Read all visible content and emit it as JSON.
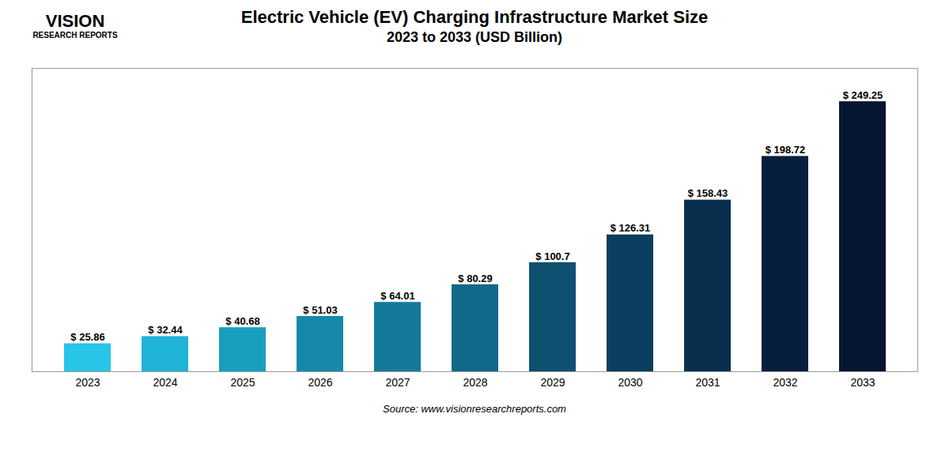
{
  "chart_data": {
    "type": "bar",
    "title": "Electric Vehicle (EV) Charging Infrastructure Market Size",
    "subtitle": "2023 to 2033 (USD Billion)",
    "categories": [
      "2023",
      "2024",
      "2025",
      "2026",
      "2027",
      "2028",
      "2029",
      "2030",
      "2031",
      "2032",
      "2033"
    ],
    "values": [
      25.86,
      32.44,
      40.68,
      51.03,
      64.01,
      80.29,
      100.7,
      126.31,
      158.43,
      198.72,
      249.25
    ],
    "value_labels": [
      "$ 25.86",
      "$ 32.44",
      "$ 40.68",
      "$ 51.03",
      "$ 64.01",
      "$ 80.29",
      "$ 100.7",
      "$ 126.31",
      "$ 158.43",
      "$ 198.72",
      "$ 249.25"
    ],
    "colors": [
      "#29c5e6",
      "#1fb3d6",
      "#189fc0",
      "#1688aa",
      "#147a9a",
      "#126888",
      "#0e5070",
      "#0b3d5e",
      "#092f4e",
      "#071e3d",
      "#061530"
    ],
    "ylim": [
      0,
      280
    ],
    "grid": false,
    "tick_labels": "x",
    "data_labels": true,
    "annotations": [
      "VISION",
      "RESEARCH REPORTS",
      "Source: www.visionresearchreports.com"
    ]
  }
}
